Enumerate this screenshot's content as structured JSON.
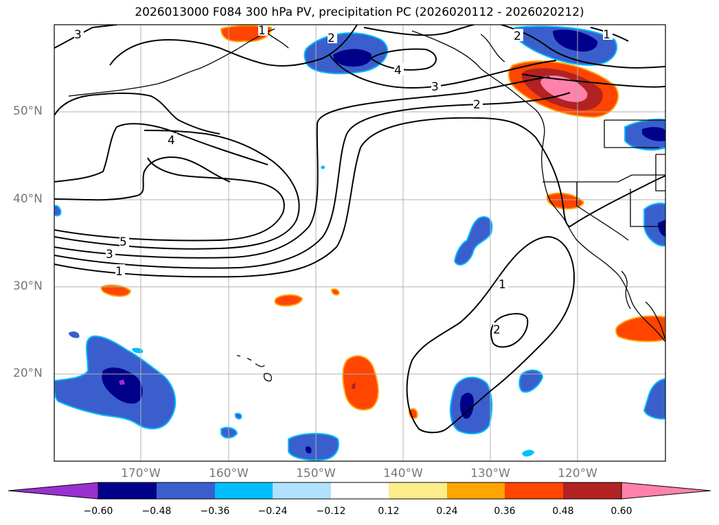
{
  "title": "2026013000 F084 300 hPa PV, precipitation PC (2026020112 - 2026020212)",
  "lat_labels": [
    "50°N",
    "40°N",
    "30°N",
    "20°N"
  ],
  "lon_labels": [
    "170°W",
    "160°W",
    "150°W",
    "140°W",
    "130°W",
    "120°W"
  ],
  "contour_labels": [
    "3",
    "1",
    "2",
    "4",
    "3",
    "2",
    "1",
    "2",
    "4",
    "5",
    "3",
    "1",
    "1",
    "2"
  ],
  "colorbar": {
    "ticks": [
      "−0.60",
      "−0.48",
      "−0.36",
      "−0.24",
      "−0.12",
      "0.12",
      "0.24",
      "0.36",
      "0.48",
      "0.60"
    ],
    "colors": [
      "#9b30d0",
      "#00008b",
      "#3a5fcd",
      "#00bfff",
      "#b0e2ff",
      "#ffffff",
      "#ffec8b",
      "#ffa500",
      "#ff4500",
      "#b22222",
      "#ff82ab"
    ]
  }
}
